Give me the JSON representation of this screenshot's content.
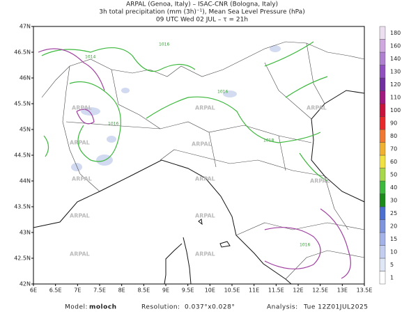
{
  "header": {
    "lines": [
      "ARPAL (Genoa, Italy)  –  ISAC-CNR (Bologna, Italy)",
      "3h total precipitation (mm (3h)⁻¹), Mean Sea Level Pressure (hPa)",
      "09 UTC Wed 02 JUL  –  τ = 21h"
    ]
  },
  "map": {
    "lat_labels": [
      "47N",
      "46.5N",
      "46N",
      "45.5N",
      "45N",
      "44.5N",
      "44N",
      "43.5N",
      "43N",
      "42.5N",
      "42N"
    ],
    "lon_labels": [
      "6E",
      "6.5E",
      "7E",
      "7.5E",
      "8E",
      "8.5E",
      "9E",
      "9.5E",
      "10E",
      "10.5E",
      "11E",
      "11.5E",
      "12E",
      "12.5E",
      "13E",
      "13.5E"
    ],
    "watermark": "ARPAL",
    "isobar_labels": [
      "1014",
      "1016",
      "1016",
      "1016",
      "1018",
      "1016"
    ]
  },
  "colorbar": {
    "levels": [
      1,
      5,
      10,
      15,
      20,
      25,
      30,
      40,
      50,
      60,
      70,
      80,
      90,
      100,
      110,
      120,
      130,
      140,
      160,
      180
    ],
    "colors": [
      "#ffffff",
      "#dfe6f5",
      "#c2cdef",
      "#a3b3e8",
      "#7e95de",
      "#4d6fd0",
      "#1a8a1a",
      "#3cb83c",
      "#a8d84a",
      "#f0e040",
      "#f0b030",
      "#f07830",
      "#e82a2a",
      "#c8143c",
      "#a01a80",
      "#7030a0",
      "#9050c0",
      "#b080d0",
      "#d0a8e0",
      "#ece0f0"
    ]
  },
  "footer": {
    "model_label": "Model:",
    "model": "moloch",
    "resolution_label": "Resolution:",
    "resolution": "0.037°x0.028°",
    "analysis_label": "Analysis:",
    "analysis": "Tue 12Z01JUL2025"
  }
}
